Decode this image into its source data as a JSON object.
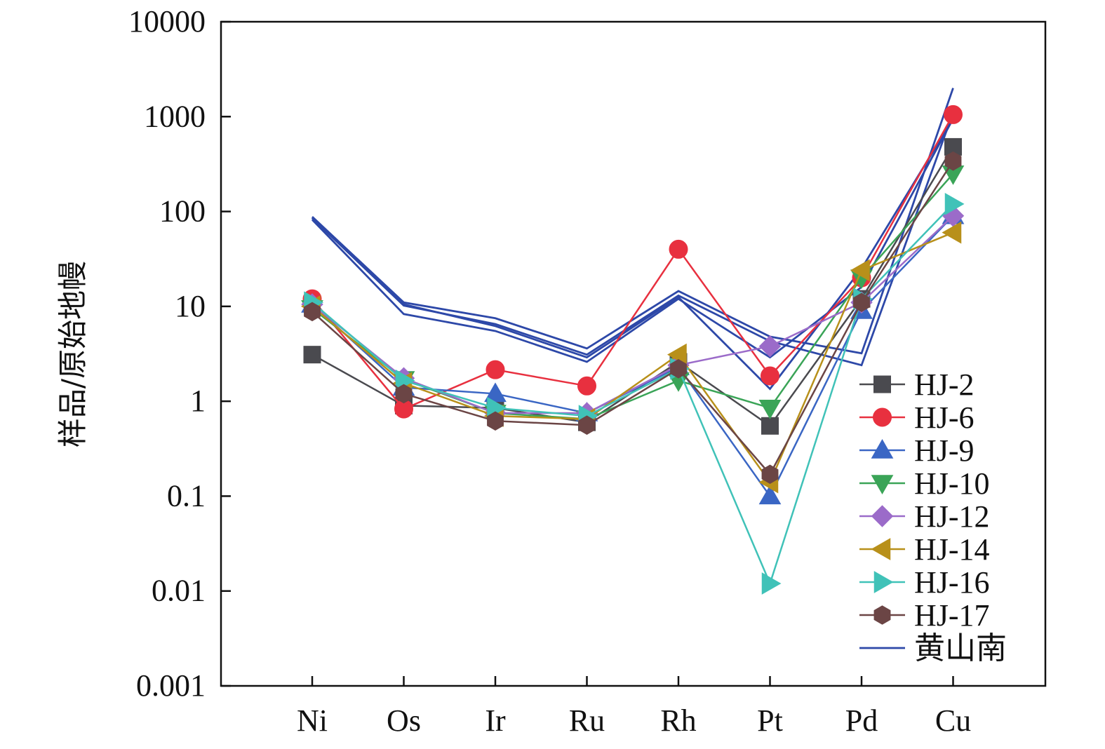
{
  "chart_data": {
    "type": "line",
    "title": "",
    "xlabel": "",
    "ylabel": "样品/原始地幔",
    "yscale": "log",
    "ylim": [
      0.001,
      10000
    ],
    "y_ticks": [
      "0.001",
      "0.01",
      "0.1",
      "1",
      "10",
      "100",
      "1000",
      "10000"
    ],
    "y_tick_values": [
      0.001,
      0.01,
      0.1,
      1,
      10,
      100,
      1000,
      10000
    ],
    "categories": [
      "Ni",
      "Os",
      "Ir",
      "Ru",
      "Rh",
      "Pt",
      "Pd",
      "Cu"
    ],
    "legend_position": "right",
    "series": [
      {
        "name": "HJ-2",
        "color": "#4a4a4f",
        "marker": "square",
        "values": [
          3.1,
          0.9,
          0.85,
          0.6,
          2.6,
          0.55,
          12,
          480
        ]
      },
      {
        "name": "HJ-6",
        "color": "#e8303f",
        "marker": "circle",
        "values": [
          12,
          0.83,
          2.15,
          1.45,
          40,
          1.85,
          20,
          1050
        ]
      },
      {
        "name": "HJ-9",
        "color": "#3a66c4",
        "marker": "triangle-up",
        "values": [
          10.5,
          1.4,
          1.2,
          0.75,
          2.3,
          0.1,
          9,
          90
        ]
      },
      {
        "name": "HJ-10",
        "color": "#3aa457",
        "marker": "triangle-down",
        "values": [
          9.5,
          1.7,
          0.75,
          0.65,
          1.65,
          0.85,
          20,
          250
        ]
      },
      {
        "name": "HJ-12",
        "color": "#9b6bc9",
        "marker": "diamond",
        "values": [
          10.5,
          1.75,
          0.75,
          0.75,
          2.4,
          3.8,
          11,
          90
        ]
      },
      {
        "name": "HJ-14",
        "color": "#b8901a",
        "marker": "triangle-left",
        "values": [
          10,
          1.55,
          0.7,
          0.65,
          3.1,
          0.14,
          24,
          60
        ]
      },
      {
        "name": "HJ-16",
        "color": "#40c2b8",
        "marker": "triangle-right",
        "values": [
          11,
          1.65,
          0.85,
          0.7,
          2.2,
          0.012,
          12,
          120
        ]
      },
      {
        "name": "HJ-17",
        "color": "#6b4545",
        "marker": "hexagon",
        "values": [
          8.8,
          1.2,
          0.62,
          0.56,
          2.2,
          0.17,
          11,
          340
        ]
      }
    ],
    "reference": {
      "name": "黄山南",
      "color": "#2d48a8",
      "lines": [
        [
          88,
          11,
          7.5,
          3.6,
          14.5,
          4.8,
          3.2,
          2000
        ],
        [
          85,
          10.2,
          6.5,
          3.1,
          13,
          4.3,
          2.4,
          1100
        ],
        [
          82,
          8.3,
          5.5,
          2.6,
          12,
          2.9,
          16,
          950
        ],
        [
          86,
          10.5,
          6.2,
          2.9,
          12.5,
          1.35,
          25,
          950
        ]
      ]
    }
  }
}
